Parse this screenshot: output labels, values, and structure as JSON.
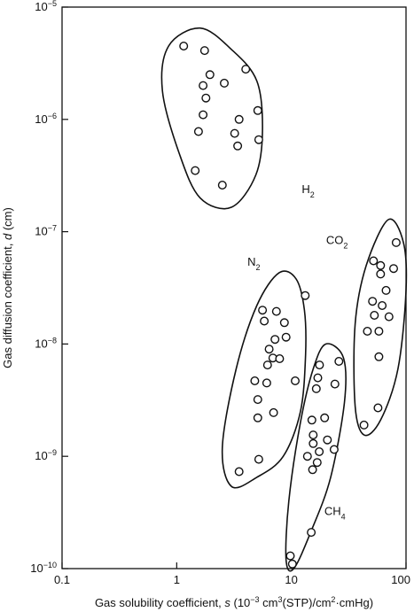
{
  "chart_data": {
    "type": "scatter",
    "x_scale": "log",
    "y_scale": "log",
    "xlim": [
      0.1,
      100
    ],
    "ylim": [
      1e-10,
      1e-05
    ],
    "grid": false,
    "xlabel": {
      "prefix": "Gas solubility coefficient, ",
      "var": "s",
      "mid1": " (10",
      "sup1": "−3",
      "mid2": " cm",
      "sup2": "3",
      "mid3": "(STP)/cm",
      "sup3": "2",
      "suffix": "·cmHg)"
    },
    "ylabel": {
      "prefix": "Gas diffusion coefficient, ",
      "var": "d",
      "suffix": " (cm)"
    },
    "x_ticks": [
      {
        "value": 0.1,
        "label": "0.1"
      },
      {
        "value": 1,
        "label": "1"
      },
      {
        "value": 10,
        "label": "10"
      },
      {
        "value": 100,
        "label": "100"
      }
    ],
    "y_ticks": [
      {
        "value": 1e-10,
        "base": "10",
        "exp": "−10"
      },
      {
        "value": 1e-09,
        "base": "10",
        "exp": "−9"
      },
      {
        "value": 1e-08,
        "base": "10",
        "exp": "−8"
      },
      {
        "value": 1e-07,
        "base": "10",
        "exp": "−7"
      },
      {
        "value": 1e-06,
        "base": "10",
        "exp": "−6"
      },
      {
        "value": 1e-05,
        "base": "10",
        "exp": "−5"
      }
    ],
    "groups": [
      {
        "label_main": "H",
        "label_sub": "2",
        "label_at": [
          14,
          2.2e-07
        ],
        "points": [
          [
            1.15,
            4.5e-06
          ],
          [
            1.75,
            4.1e-06
          ],
          [
            1.95,
            2.5e-06
          ],
          [
            1.7,
            2e-06
          ],
          [
            2.6,
            2.1e-06
          ],
          [
            4.0,
            2.8e-06
          ],
          [
            1.8,
            1.55e-06
          ],
          [
            1.7,
            1.1e-06
          ],
          [
            3.5,
            1e-06
          ],
          [
            5.1,
            1.2e-06
          ],
          [
            1.55,
            7.8e-07
          ],
          [
            3.2,
            7.5e-07
          ],
          [
            3.4,
            5.8e-07
          ],
          [
            5.2,
            6.6e-07
          ],
          [
            1.45,
            3.5e-07
          ],
          [
            2.5,
            2.6e-07
          ]
        ],
        "envelope": [
          [
            1.6,
            6.5e-06
          ],
          [
            3.0,
            4.2e-06
          ],
          [
            5.0,
            2.2e-06
          ],
          [
            5.6,
            8e-07
          ],
          [
            4.9,
            3.2e-07
          ],
          [
            3.0,
            1.65e-07
          ],
          [
            1.6,
            2e-07
          ],
          [
            1.05,
            5e-07
          ],
          [
            0.75,
            1.8e-06
          ],
          [
            0.85,
            4.5e-06
          ]
        ]
      },
      {
        "label_main": "N",
        "label_sub": "2",
        "label_at": [
          4.7,
          5e-08
        ],
        "points": [
          [
            5.6,
            2e-08
          ],
          [
            7.4,
            1.95e-08
          ],
          [
            13.2,
            2.7e-08
          ],
          [
            8.7,
            1.55e-08
          ],
          [
            5.8,
            1.6e-08
          ],
          [
            9.0,
            1.15e-08
          ],
          [
            7.2,
            1.1e-08
          ],
          [
            6.4,
            9e-09
          ],
          [
            6.9,
            7.5e-09
          ],
          [
            6.2,
            6.5e-09
          ],
          [
            7.9,
            7.4e-09
          ],
          [
            4.8,
            4.7e-09
          ],
          [
            6.1,
            4.5e-09
          ],
          [
            10.8,
            4.7e-09
          ],
          [
            5.1,
            3.2e-09
          ],
          [
            7.0,
            2.45e-09
          ],
          [
            5.1,
            2.2e-09
          ],
          [
            5.2,
            9.4e-10
          ],
          [
            3.5,
            7.3e-10
          ]
        ],
        "envelope": [
          [
            7.8,
            4.3e-08
          ],
          [
            11.0,
            3.8e-08
          ],
          [
            13.0,
            2e-08
          ],
          [
            13.3,
            8e-09
          ],
          [
            12.0,
            2.5e-09
          ],
          [
            8.5,
            1e-09
          ],
          [
            5.0,
            6.5e-10
          ],
          [
            3.0,
            5.4e-10
          ],
          [
            2.5,
            1.2e-09
          ],
          [
            3.3,
            6e-09
          ],
          [
            5.0,
            2.2e-08
          ]
        ]
      },
      {
        "label_main": "CH",
        "label_sub": "4",
        "label_at": [
          24,
          3e-10
        ],
        "points": [
          [
            17.6,
            6.5e-09
          ],
          [
            26.0,
            7e-09
          ],
          [
            17.0,
            5e-09
          ],
          [
            24.0,
            4.4e-09
          ],
          [
            16.5,
            4e-09
          ],
          [
            15.1,
            2.1e-09
          ],
          [
            19.5,
            2.2e-09
          ],
          [
            15.5,
            1.55e-09
          ],
          [
            15.5,
            1.3e-09
          ],
          [
            20.6,
            1.4e-09
          ],
          [
            13.8,
            1e-09
          ],
          [
            23.6,
            1.15e-09
          ],
          [
            17.5,
            1.1e-09
          ],
          [
            16.8,
            8.8e-10
          ],
          [
            15.3,
            7.6e-10
          ],
          [
            14.9,
            2.1e-10
          ],
          [
            9.8,
            1.3e-10
          ],
          [
            10.2,
            1.1e-10
          ]
        ],
        "envelope": [
          [
            20.0,
            1e-08
          ],
          [
            28.5,
            7.5e-09
          ],
          [
            29.0,
            3e-09
          ],
          [
            22.0,
            6.5e-10
          ],
          [
            15.0,
            2.2e-10
          ],
          [
            10.5,
            1e-10
          ],
          [
            9.0,
            1.2e-10
          ],
          [
            9.5,
            4e-10
          ],
          [
            12.0,
            2e-09
          ],
          [
            15.5,
            6e-09
          ]
        ]
      },
      {
        "label_main": "CO",
        "label_sub": "2",
        "label_at": [
          25,
          7.8e-08
        ],
        "points": [
          [
            82.0,
            8e-08
          ],
          [
            52.0,
            5.5e-08
          ],
          [
            60.0,
            5e-08
          ],
          [
            78.0,
            4.7e-08
          ],
          [
            60.0,
            4.2e-08
          ],
          [
            67.0,
            3e-08
          ],
          [
            51.0,
            2.4e-08
          ],
          [
            62.0,
            2.2e-08
          ],
          [
            53.0,
            1.8e-08
          ],
          [
            71.0,
            1.75e-08
          ],
          [
            46.0,
            1.3e-08
          ],
          [
            58.0,
            1.3e-08
          ],
          [
            58.0,
            7.7e-09
          ],
          [
            57.0,
            2.7e-09
          ],
          [
            43.0,
            1.9e-09
          ]
        ],
        "envelope": [
          [
            70.0,
            1.28e-07
          ],
          [
            95.0,
            8e-08
          ],
          [
            100.0,
            3e-08
          ],
          [
            85.0,
            6e-09
          ],
          [
            60.0,
            2.1e-09
          ],
          [
            43.0,
            1.55e-09
          ],
          [
            36.0,
            2.8e-09
          ],
          [
            36.0,
            1.5e-08
          ],
          [
            45.0,
            5e-08
          ]
        ]
      }
    ]
  }
}
